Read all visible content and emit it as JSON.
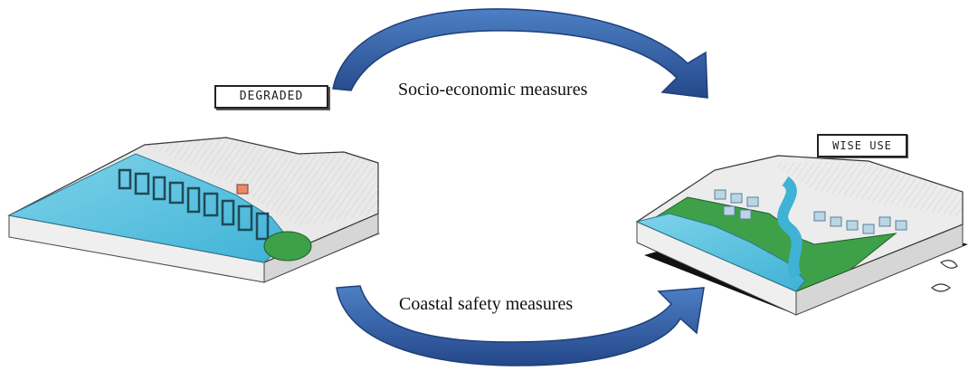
{
  "diagram": {
    "states": {
      "left": "DEGRADED",
      "right": "WISE USE"
    },
    "transitions": {
      "top": "Socio-economic measures",
      "bottom": "Coastal safety measures"
    }
  },
  "colors": {
    "arrow": "#3366b0",
    "arrow_dark": "#24488a",
    "water": "#5ec4e0",
    "land": "#e8e8e8",
    "green": "#3fa04a",
    "shadow": "#111111"
  }
}
